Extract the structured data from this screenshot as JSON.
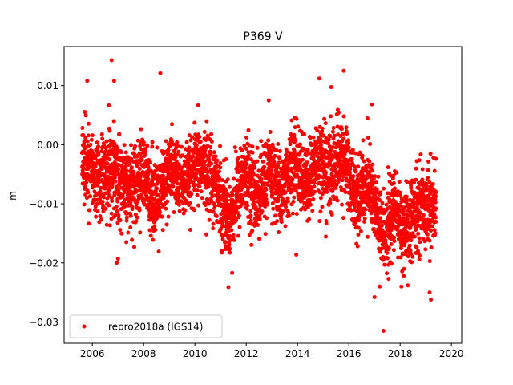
{
  "chart_data": {
    "type": "scatter",
    "title": "P369 V",
    "xlabel": "",
    "ylabel": "m",
    "xlim": [
      2004.9,
      2020.4
    ],
    "ylim": [
      -0.0336,
      0.0166
    ],
    "xticks": [
      2006,
      2008,
      2010,
      2012,
      2014,
      2016,
      2018,
      2020
    ],
    "xtick_labels": [
      "2006",
      "2008",
      "2010",
      "2012",
      "2014",
      "2016",
      "2018",
      "2020"
    ],
    "yticks": [
      -0.03,
      -0.02,
      -0.01,
      0.0,
      0.01
    ],
    "ytick_labels": [
      "−0.03",
      "−0.02",
      "−0.01",
      "0.00",
      "0.01"
    ],
    "grid": false,
    "legend_position": "lower-left",
    "series": [
      {
        "name": "repro2018a (IGS14)",
        "color": "#ff0000",
        "marker": "circle",
        "x_range": [
          2005.6,
          2019.4
        ],
        "envelope_x": [
          2005.6,
          2006.2,
          2006.8,
          2007.3,
          2007.9,
          2008.6,
          2009.0,
          2009.6,
          2010.2,
          2010.8,
          2011.3,
          2011.9,
          2012.5,
          2012.9,
          2013.3,
          2013.9,
          2014.4,
          2014.8,
          2015.2,
          2015.8,
          2016.3,
          2016.8,
          2017.3,
          2017.8,
          2018.2,
          2018.8,
          2019.4
        ],
        "envelope_mean": [
          -0.002,
          -0.006,
          -0.004,
          -0.008,
          -0.005,
          -0.01,
          -0.004,
          -0.007,
          -0.003,
          -0.006,
          -0.013,
          -0.005,
          -0.009,
          -0.004,
          -0.008,
          -0.003,
          -0.007,
          -0.002,
          -0.005,
          -0.002,
          -0.009,
          -0.006,
          -0.016,
          -0.011,
          -0.015,
          -0.01,
          -0.011
        ],
        "envelope_spread": [
          0.006,
          0.006,
          0.007,
          0.006,
          0.006,
          0.006,
          0.006,
          0.005,
          0.006,
          0.006,
          0.006,
          0.006,
          0.006,
          0.006,
          0.006,
          0.006,
          0.006,
          0.006,
          0.007,
          0.006,
          0.006,
          0.006,
          0.006,
          0.006,
          0.006,
          0.006,
          0.006
        ],
        "outliers": [
          {
            "x": 2006.75,
            "y": 0.0143
          },
          {
            "x": 2008.65,
            "y": 0.0121
          },
          {
            "x": 2015.8,
            "y": 0.0125
          },
          {
            "x": 2014.85,
            "y": 0.0112
          },
          {
            "x": 2005.8,
            "y": 0.0108
          },
          {
            "x": 2006.85,
            "y": 0.0108
          },
          {
            "x": 2016.9,
            "y": 0.0068
          },
          {
            "x": 2006.95,
            "y": -0.02
          },
          {
            "x": 2007.0,
            "y": -0.0193
          },
          {
            "x": 2011.45,
            "y": -0.0217
          },
          {
            "x": 2013.95,
            "y": -0.0186
          },
          {
            "x": 2017.35,
            "y": -0.0315
          },
          {
            "x": 2017.0,
            "y": -0.0258
          },
          {
            "x": 2019.2,
            "y": -0.0262
          },
          {
            "x": 2019.15,
            "y": -0.025
          },
          {
            "x": 2017.2,
            "y": -0.024
          },
          {
            "x": 2017.55,
            "y": -0.0227
          },
          {
            "x": 2018.05,
            "y": -0.024
          },
          {
            "x": 2018.3,
            "y": -0.0238
          }
        ]
      }
    ]
  }
}
